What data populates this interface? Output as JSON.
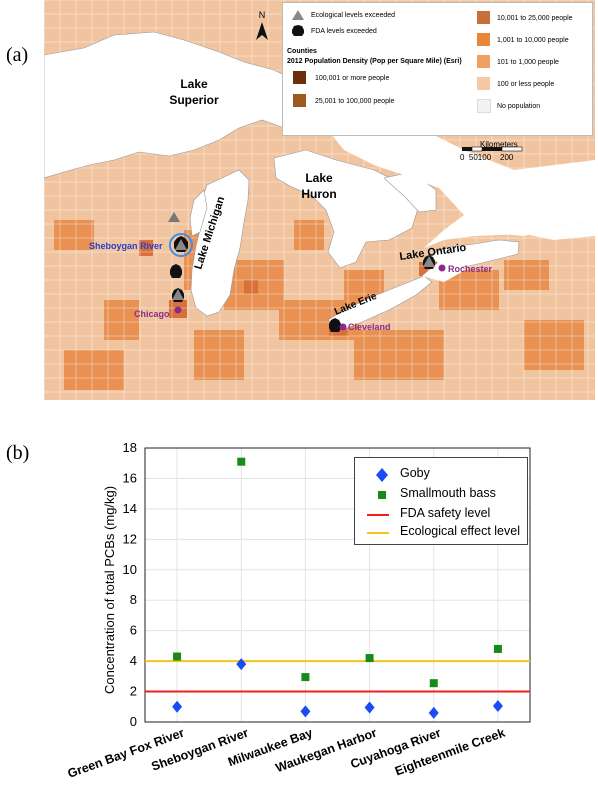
{
  "panel_a_label": "(a)",
  "panel_b_label": "(b)",
  "map": {
    "north": "N",
    "lakes": {
      "superior": [
        "Lake",
        "Superior"
      ],
      "michigan": "Lake Michigan",
      "huron": [
        "Lake",
        "Huron"
      ],
      "erie": "Lake Erie",
      "ontario": "Lake Ontario"
    },
    "cities": {
      "sheboygan": "Sheboygan River",
      "chicago": "Chicago",
      "cleveland": "Cleveland",
      "rochester": "Rochester"
    },
    "legend": {
      "eco": "Ecological levels exceeded",
      "fda": "FDA  levels exceeded",
      "counties": "Counties",
      "density_title": "2012 Population Density (Pop per Square Mile) (Esri)",
      "classes": [
        {
          "label": "100,001 or more people",
          "color": "#6b2f0c"
        },
        {
          "label": "25,001 to 100,000 people",
          "color": "#9c5a1e"
        },
        {
          "label": "10,001 to 25,000 people",
          "color": "#c8703a"
        },
        {
          "label": "1,001 to 10,000 people",
          "color": "#e8873a"
        },
        {
          "label": "101 to 1,000 people",
          "color": "#f0a060"
        },
        {
          "label": "100 or less people",
          "color": "#f5c9a4"
        },
        {
          "label": "No population",
          "color": "#f4f2f0"
        }
      ]
    },
    "scale": {
      "unit": "Kilometers",
      "ticks": "0  50100    200"
    }
  },
  "chart_data": {
    "type": "scatter",
    "categories": [
      "Green Bay Fox River",
      "Sheboygan River",
      "Milwaukee Bay",
      "Waukegan Harbor",
      "Cuyahoga River",
      "Eighteenmile Creek"
    ],
    "series": [
      {
        "name": "Goby",
        "marker": "diamond",
        "color": "#1a4cf5",
        "values": [
          1.0,
          3.8,
          0.7,
          0.95,
          0.6,
          1.05
        ]
      },
      {
        "name": "Smallmouth bass",
        "marker": "square",
        "color": "#188a18",
        "values": [
          4.3,
          17.1,
          2.95,
          4.2,
          2.55,
          4.8
        ]
      }
    ],
    "reference_lines": [
      {
        "name": "FDA safety level",
        "value": 2,
        "color": "#f01e1e"
      },
      {
        "name": "Ecological effect level",
        "value": 4,
        "color": "#f5c518"
      }
    ],
    "ylabel": "Concentration of total PCBs  (mg/kg)",
    "xlabel": "",
    "ylim": [
      0,
      18
    ],
    "yticks": [
      0,
      2,
      4,
      6,
      8,
      10,
      12,
      14,
      16,
      18
    ],
    "grid": true,
    "legend_position": "top-right"
  }
}
